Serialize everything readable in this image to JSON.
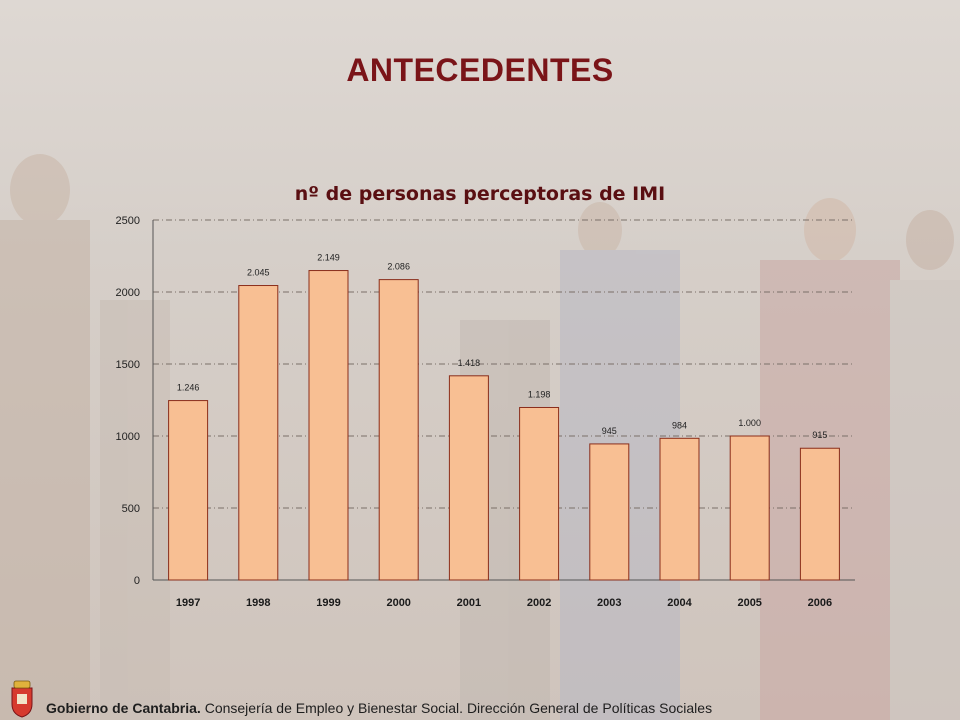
{
  "slide": {
    "title": "ANTECEDENTES"
  },
  "footer": {
    "org": "Gobierno de Cantabria.",
    "dept": "Consejería de Empleo y Bienestar Social. Dirección General de Políticas Sociales"
  },
  "chart_data": {
    "type": "bar",
    "title": "nº de personas perceptoras de IMI",
    "categories": [
      "1997",
      "1998",
      "1999",
      "2000",
      "2001",
      "2002",
      "2003",
      "2004",
      "2005",
      "2006"
    ],
    "values": [
      1246,
      2045,
      2149,
      2086,
      1418,
      1198,
      945,
      984,
      1000,
      915
    ],
    "data_labels": [
      "1.246",
      "2.045",
      "2.149",
      "2.086",
      "1.418",
      "1.198",
      "945",
      "984",
      "1.000",
      "915"
    ],
    "yticks": [
      0,
      500,
      1000,
      1500,
      2000,
      2500
    ],
    "ylim": [
      0,
      2500
    ],
    "xlabel": "",
    "ylabel": "",
    "grid": true,
    "colors": {
      "bar": "#f8bf93",
      "bar_edge": "#8a2d1a",
      "grid": "#7a6f68",
      "title": "#5a0f12"
    }
  }
}
